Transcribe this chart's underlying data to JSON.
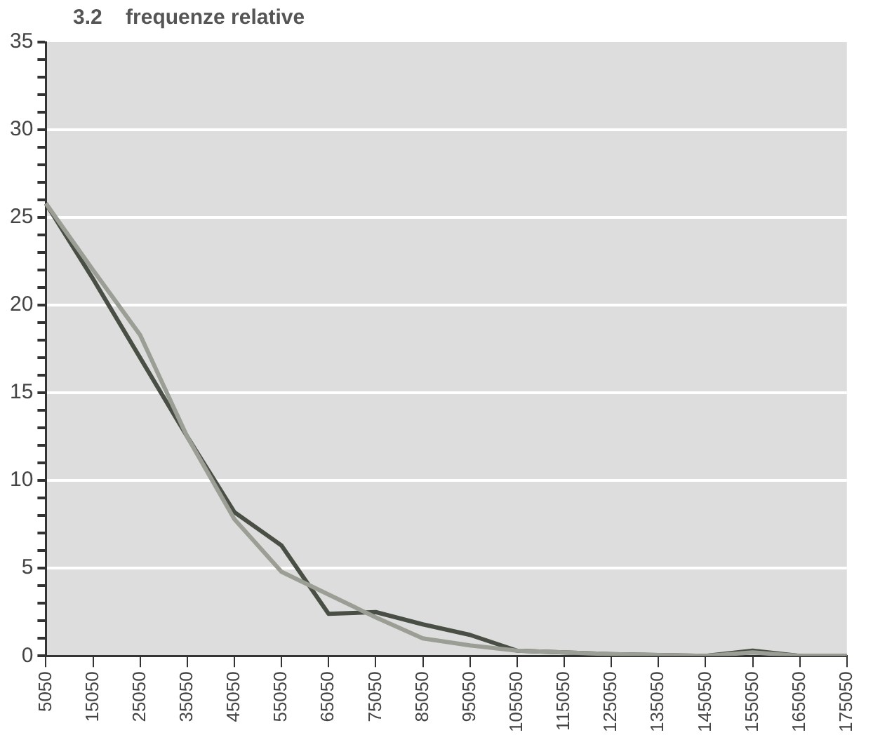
{
  "chart_data": {
    "type": "line",
    "title": "3.2    frequenze relative",
    "categories": [
      "5050",
      "15050",
      "25050",
      "35050",
      "45050",
      "55050",
      "65050",
      "75050",
      "85050",
      "95050",
      "105050",
      "115050",
      "125050",
      "135050",
      "145050",
      "155050",
      "165050",
      "175050"
    ],
    "series": [
      {
        "color": "#9a9e94",
        "values": [
          25.8,
          22,
          18.3,
          12.5,
          7.8,
          4.8,
          3.5,
          2.2,
          1.0,
          0.6,
          0.3,
          0.2,
          0.1,
          0.05,
          0,
          0.2,
          0,
          0
        ]
      },
      {
        "color": "#4a4f45",
        "values": [
          25.8,
          21.5,
          17,
          12.5,
          8.2,
          6.3,
          2.4,
          2.5,
          1.8,
          1.2,
          0.3,
          0.2,
          0.1,
          0.05,
          0,
          0.3,
          0,
          0
        ]
      }
    ],
    "ylim": [
      0,
      35
    ],
    "yticks": [
      0,
      {
        "value": 1,
        "label": null
      },
      {
        "value": 2,
        "label": null
      },
      {
        "value": 3,
        "label": null
      },
      {
        "value": 4,
        "label": null
      },
      5,
      {
        "value": 6,
        "label": null
      },
      {
        "value": 7,
        "label": null
      },
      {
        "value": 8,
        "label": null
      },
      {
        "value": 9,
        "label": null
      },
      10,
      {
        "value": 11,
        "label": null
      },
      {
        "value": 12,
        "label": null
      },
      {
        "value": 13,
        "label": null
      },
      {
        "value": 14,
        "label": null
      },
      15,
      {
        "value": 16,
        "label": null
      },
      {
        "value": 17,
        "label": null
      },
      {
        "value": 18,
        "label": null
      },
      {
        "value": 19,
        "label": null
      },
      20,
      {
        "value": 21,
        "label": null
      },
      {
        "value": 22,
        "label": null
      },
      {
        "value": 23,
        "label": null
      },
      {
        "value": 24,
        "label": null
      },
      25,
      {
        "value": 26,
        "label": null
      },
      {
        "value": 27,
        "label": null
      },
      {
        "value": 28,
        "label": null
      },
      {
        "value": 29,
        "label": null
      },
      30,
      {
        "value": 31,
        "label": null
      },
      {
        "value": 32,
        "label": null
      },
      {
        "value": 33,
        "label": null
      },
      {
        "value": 34,
        "label": null
      },
      35
    ],
    "grid": "y",
    "legend": false,
    "marker": "none",
    "line_style": "solid"
  }
}
